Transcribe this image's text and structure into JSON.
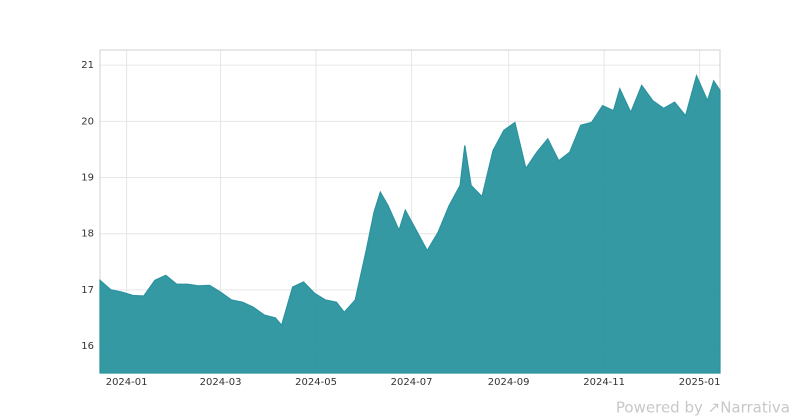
{
  "chart_data": {
    "type": "area",
    "x": [
      "2023-12-15",
      "2023-12-22",
      "2023-12-29",
      "2024-01-05",
      "2024-01-12",
      "2024-01-19",
      "2024-01-26",
      "2024-02-02",
      "2024-02-09",
      "2024-02-16",
      "2024-02-23",
      "2024-03-01",
      "2024-03-08",
      "2024-03-15",
      "2024-03-22",
      "2024-03-29",
      "2024-04-05",
      "2024-04-09",
      "2024-04-16",
      "2024-04-23",
      "2024-04-30",
      "2024-05-07",
      "2024-05-14",
      "2024-05-19",
      "2024-05-26",
      "2024-06-02",
      "2024-06-07",
      "2024-06-11",
      "2024-06-16",
      "2024-06-23",
      "2024-06-27",
      "2024-07-04",
      "2024-07-11",
      "2024-07-18",
      "2024-07-25",
      "2024-08-01",
      "2024-08-04",
      "2024-08-08",
      "2024-08-15",
      "2024-08-22",
      "2024-08-29",
      "2024-09-05",
      "2024-09-12",
      "2024-09-19",
      "2024-09-26",
      "2024-10-03",
      "2024-10-10",
      "2024-10-17",
      "2024-10-24",
      "2024-10-31",
      "2024-11-07",
      "2024-11-11",
      "2024-11-18",
      "2024-11-25",
      "2024-12-02",
      "2024-12-09",
      "2024-12-16",
      "2024-12-23",
      "2024-12-30",
      "2025-01-06",
      "2025-01-10",
      "2025-01-14"
    ],
    "series": [
      {
        "color": "#2a939f",
        "values": [
          17.17,
          17.0,
          16.96,
          16.9,
          16.89,
          17.17,
          17.26,
          17.1,
          17.1,
          17.07,
          17.08,
          16.96,
          16.82,
          16.78,
          16.69,
          16.55,
          16.5,
          16.37,
          17.05,
          17.14,
          16.94,
          16.82,
          16.78,
          16.6,
          16.82,
          17.7,
          18.38,
          18.74,
          18.5,
          18.06,
          18.42,
          18.06,
          17.7,
          18.03,
          18.5,
          18.86,
          19.57,
          18.86,
          18.66,
          19.48,
          19.84,
          19.98,
          19.16,
          19.45,
          19.69,
          19.3,
          19.45,
          19.93,
          19.98,
          20.28,
          20.19,
          20.58,
          20.16,
          20.64,
          20.37,
          20.23,
          20.34,
          20.1,
          20.81,
          20.37,
          20.72,
          20.55
        ]
      }
    ],
    "xlim": [
      "2023-12-15",
      "2025-01-14"
    ],
    "xticks": [
      {
        "value": "2024-01-01",
        "label": "2024-01"
      },
      {
        "value": "2024-03-01",
        "label": "2024-03"
      },
      {
        "value": "2024-05-01",
        "label": "2024-05"
      },
      {
        "value": "2024-07-01",
        "label": "2024-07"
      },
      {
        "value": "2024-09-01",
        "label": "2024-09"
      },
      {
        "value": "2024-11-01",
        "label": "2024-11"
      },
      {
        "value": "2025-01-01",
        "label": "2025-01"
      }
    ],
    "ylim": [
      15.52,
      21.27
    ],
    "yticks": [
      16,
      17,
      18,
      19,
      20,
      21
    ],
    "grid": true,
    "credit": "Powered by ↗Narrativa"
  }
}
